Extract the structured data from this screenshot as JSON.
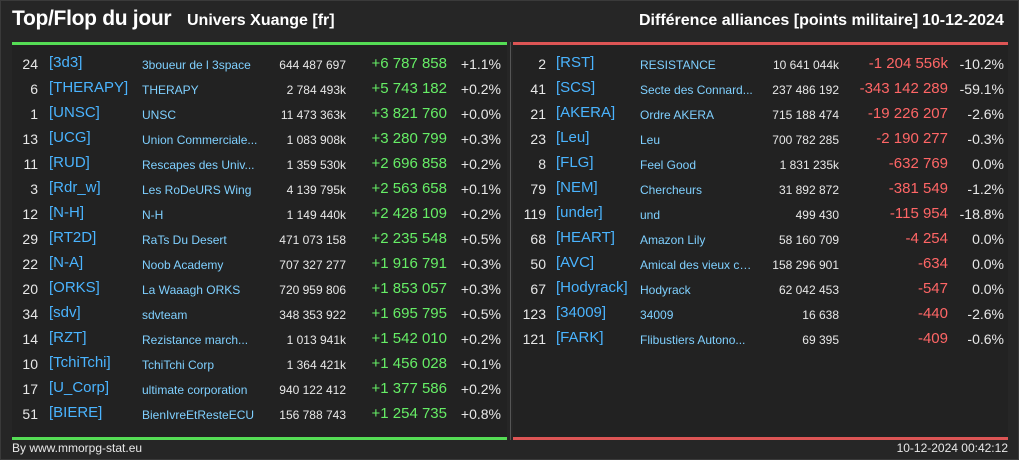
{
  "header": {
    "title": "Top/Flop du jour",
    "universe": "Univers Xuange [fr]",
    "subtitle": "Différence alliances [points militaire]",
    "date": "10-12-2024"
  },
  "colors": {
    "positive": "#66ee66",
    "negative": "#ff6666",
    "tag": "#4ab4ff",
    "top_bar": "#55dd55",
    "flop_bar": "#dd5555"
  },
  "top": [
    {
      "rank": "24",
      "tag": "[3d3]",
      "name": "3boueur de l 3space",
      "total": "644 487 697",
      "diff": "+6 787 858",
      "pct": "+1.1%"
    },
    {
      "rank": "6",
      "tag": "[THERAPY]",
      "name": "THERAPY",
      "total": "2 784 493k",
      "diff": "+5 743 182",
      "pct": "+0.2%"
    },
    {
      "rank": "1",
      "tag": "[UNSC]",
      "name": "UNSC",
      "total": "11 473 363k",
      "diff": "+3 821 760",
      "pct": "+0.0%"
    },
    {
      "rank": "13",
      "tag": "[UCG]",
      "name": "Union Commerciale...",
      "total": "1 083 908k",
      "diff": "+3 280 799",
      "pct": "+0.3%"
    },
    {
      "rank": "11",
      "tag": "[RUD]",
      "name": "Rescapes des Univ...",
      "total": "1 359 530k",
      "diff": "+2 696 858",
      "pct": "+0.2%"
    },
    {
      "rank": "3",
      "tag": "[Rdr_w]",
      "name": "Les RoDeURS Wing",
      "total": "4 139 795k",
      "diff": "+2 563 658",
      "pct": "+0.1%"
    },
    {
      "rank": "12",
      "tag": "[N-H]",
      "name": "N-H",
      "total": "1 149 440k",
      "diff": "+2 428 109",
      "pct": "+0.2%"
    },
    {
      "rank": "29",
      "tag": "[RT2D]",
      "name": "RaTs Du Desert",
      "total": "471 073 158",
      "diff": "+2 235 548",
      "pct": "+0.5%"
    },
    {
      "rank": "22",
      "tag": "[N-A]",
      "name": "Noob Academy",
      "total": "707 327 277",
      "diff": "+1 916 791",
      "pct": "+0.3%"
    },
    {
      "rank": "20",
      "tag": "[ORKS]",
      "name": "La Waaagh ORKS",
      "total": "720 959 806",
      "diff": "+1 853 057",
      "pct": "+0.3%"
    },
    {
      "rank": "34",
      "tag": "[sdv]",
      "name": "sdvteam",
      "total": "348 353 922",
      "diff": "+1 695 795",
      "pct": "+0.5%"
    },
    {
      "rank": "14",
      "tag": "[RZT]",
      "name": "Rezistance march...",
      "total": "1 013 941k",
      "diff": "+1 542 010",
      "pct": "+0.2%"
    },
    {
      "rank": "10",
      "tag": "[TchiTchi]",
      "name": "TchiTchi Corp",
      "total": "1 364 421k",
      "diff": "+1 456 028",
      "pct": "+0.1%"
    },
    {
      "rank": "17",
      "tag": "[U_Corp]",
      "name": "ultimate corporation",
      "total": "940 122 412",
      "diff": "+1 377 586",
      "pct": "+0.2%"
    },
    {
      "rank": "51",
      "tag": "[BIERE]",
      "name": "BienIvreEtResteECU",
      "total": "156 788 743",
      "diff": "+1 254 735",
      "pct": "+0.8%"
    }
  ],
  "flop": [
    {
      "rank": "2",
      "tag": "[RST]",
      "name": "RESISTANCE",
      "total": "10 641 044k",
      "diff": "-1 204 556k",
      "pct": "-10.2%"
    },
    {
      "rank": "41",
      "tag": "[SCS]",
      "name": "Secte des Connard...",
      "total": "237 486 192",
      "diff": "-343 142 289",
      "pct": "-59.1%"
    },
    {
      "rank": "21",
      "tag": "[AKERA]",
      "name": "Ordre AKERA",
      "total": "715 188 474",
      "diff": "-19 226 207",
      "pct": "-2.6%"
    },
    {
      "rank": "23",
      "tag": "[Leu]",
      "name": "Leu",
      "total": "700 782 285",
      "diff": "-2 190 277",
      "pct": "-0.3%"
    },
    {
      "rank": "8",
      "tag": "[FLG]",
      "name": "Feel Good",
      "total": "1 831 235k",
      "diff": "-632 769",
      "pct": "0.0%"
    },
    {
      "rank": "79",
      "tag": "[NEM]",
      "name": "Chercheurs",
      "total": "31 892 872",
      "diff": "-381 549",
      "pct": "-1.2%"
    },
    {
      "rank": "119",
      "tag": "[under]",
      "name": "und",
      "total": "499 430",
      "diff": "-115 954",
      "pct": "-18.8%"
    },
    {
      "rank": "68",
      "tag": "[HEART]",
      "name": "Amazon Lily",
      "total": "58 160 709",
      "diff": "-4 254",
      "pct": "0.0%"
    },
    {
      "rank": "50",
      "tag": "[AVC]",
      "name": "Amical des vieux co...",
      "total": "158 296 901",
      "diff": "-634",
      "pct": "0.0%"
    },
    {
      "rank": "67",
      "tag": "[Hodyrack]",
      "name": "Hodyrack",
      "total": "62 042 453",
      "diff": "-547",
      "pct": "0.0%"
    },
    {
      "rank": "123",
      "tag": "[34009]",
      "name": "34009",
      "total": "16 638",
      "diff": "-440",
      "pct": "-2.6%"
    },
    {
      "rank": "121",
      "tag": "[FARK]",
      "name": "Flibustiers Autono...",
      "total": "69 395",
      "diff": "-409",
      "pct": "-0.6%"
    }
  ],
  "footer": {
    "source": "By www.mmorpg-stat.eu",
    "timestamp": "10-12-2024 00:42:12"
  }
}
